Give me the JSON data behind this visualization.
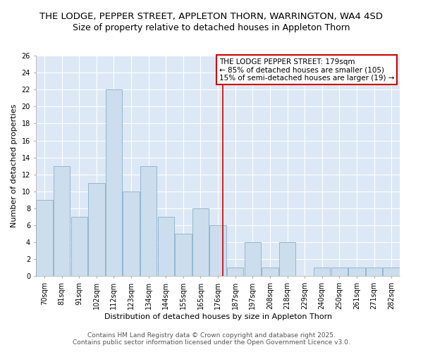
{
  "title_line1": "THE LODGE, PEPPER STREET, APPLETON THORN, WARRINGTON, WA4 4SD",
  "title_line2": "Size of property relative to detached houses in Appleton Thorn",
  "xlabel": "Distribution of detached houses by size in Appleton Thorn",
  "ylabel": "Number of detached properties",
  "categories": [
    "70sqm",
    "81sqm",
    "91sqm",
    "102sqm",
    "112sqm",
    "123sqm",
    "134sqm",
    "144sqm",
    "155sqm",
    "165sqm",
    "176sqm",
    "187sqm",
    "197sqm",
    "208sqm",
    "218sqm",
    "229sqm",
    "240sqm",
    "250sqm",
    "261sqm",
    "271sqm",
    "282sqm"
  ],
  "values": [
    9,
    13,
    7,
    11,
    22,
    10,
    13,
    7,
    5,
    8,
    6,
    1,
    4,
    1,
    4,
    0,
    1,
    1,
    1,
    1,
    1
  ],
  "bar_color": "#ccdded",
  "bar_edge_color": "#8ab0cc",
  "reference_line_color": "#cc0000",
  "annotation_text": "THE LODGE PEPPER STREET: 179sqm\n← 85% of detached houses are smaller (105)\n15% of semi-detached houses are larger (19) →",
  "annotation_box_color": "#cc0000",
  "ylim": [
    0,
    26
  ],
  "yticks": [
    0,
    2,
    4,
    6,
    8,
    10,
    12,
    14,
    16,
    18,
    20,
    22,
    24,
    26
  ],
  "plot_bg_color": "#dce8f5",
  "fig_bg_color": "#ffffff",
  "grid_color": "#ffffff",
  "footer_line1": "Contains HM Land Registry data © Crown copyright and database right 2025.",
  "footer_line2": "Contains public sector information licensed under the Open Government Licence v3.0.",
  "title_fontsize": 9.5,
  "subtitle_fontsize": 9,
  "axis_label_fontsize": 8,
  "tick_fontsize": 7,
  "annotation_fontsize": 7.5,
  "footer_fontsize": 6.5,
  "ref_line_x": 10.27
}
